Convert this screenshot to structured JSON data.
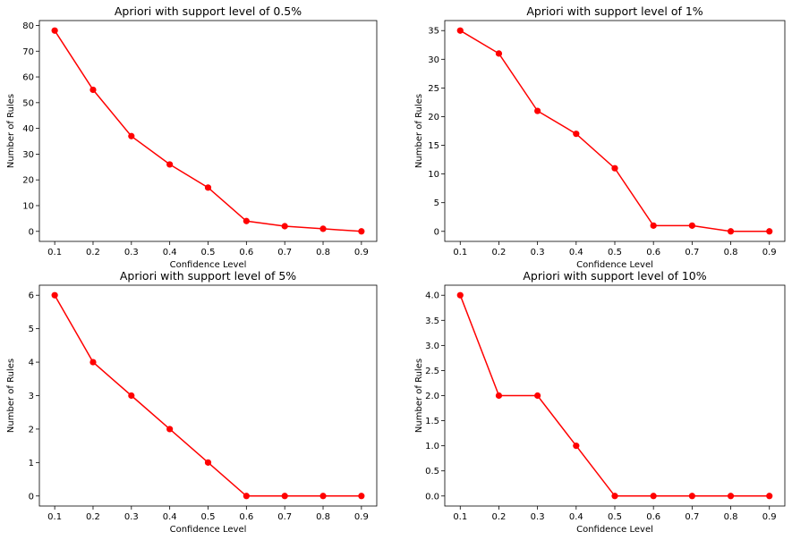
{
  "chart_data": [
    {
      "type": "line",
      "title": "Apriori with support level of 0.5%",
      "xlabel": "Confidence Level",
      "ylabel": "Number of Rules",
      "x": [
        0.1,
        0.2,
        0.3,
        0.4,
        0.5,
        0.6,
        0.7,
        0.8,
        0.9
      ],
      "values": [
        78,
        55,
        37,
        26,
        17,
        4,
        2,
        1,
        0
      ],
      "x_ticks": [
        "0.1",
        "0.2",
        "0.3",
        "0.4",
        "0.5",
        "0.6",
        "0.7",
        "0.8",
        "0.9"
      ],
      "y_ticks": [
        0,
        10,
        20,
        30,
        40,
        50,
        60,
        70,
        80
      ],
      "y_tick_labels": [
        "0",
        "10",
        "20",
        "30",
        "40",
        "50",
        "60",
        "70",
        "80"
      ],
      "xlim": [
        0.06,
        0.94
      ],
      "ylim": [
        -3.9,
        81.9
      ],
      "color": "#ff0000",
      "marker": "circle",
      "grid": false
    },
    {
      "type": "line",
      "title": "Apriori with support level of 1%",
      "xlabel": "Confidence Level",
      "ylabel": "Number of Rules",
      "x": [
        0.1,
        0.2,
        0.3,
        0.4,
        0.5,
        0.6,
        0.7,
        0.8,
        0.9
      ],
      "values": [
        35,
        31,
        21,
        17,
        11,
        1,
        1,
        0,
        0
      ],
      "x_ticks": [
        "0.1",
        "0.2",
        "0.3",
        "0.4",
        "0.5",
        "0.6",
        "0.7",
        "0.8",
        "0.9"
      ],
      "y_ticks": [
        0,
        5,
        10,
        15,
        20,
        25,
        30,
        35
      ],
      "y_tick_labels": [
        "0",
        "5",
        "10",
        "15",
        "20",
        "25",
        "30",
        "35"
      ],
      "xlim": [
        0.06,
        0.94
      ],
      "ylim": [
        -1.75,
        36.75
      ],
      "color": "#ff0000",
      "marker": "circle",
      "grid": false
    },
    {
      "type": "line",
      "title": "Apriori with support level of 5%",
      "xlabel": "Confidence Level",
      "ylabel": "Number of Rules",
      "x": [
        0.1,
        0.2,
        0.3,
        0.4,
        0.5,
        0.6,
        0.7,
        0.8,
        0.9
      ],
      "values": [
        6,
        4,
        3,
        2,
        1,
        0,
        0,
        0,
        0
      ],
      "x_ticks": [
        "0.1",
        "0.2",
        "0.3",
        "0.4",
        "0.5",
        "0.6",
        "0.7",
        "0.8",
        "0.9"
      ],
      "y_ticks": [
        0,
        1,
        2,
        3,
        4,
        5,
        6
      ],
      "y_tick_labels": [
        "0",
        "1",
        "2",
        "3",
        "4",
        "5",
        "6"
      ],
      "xlim": [
        0.06,
        0.94
      ],
      "ylim": [
        -0.3,
        6.3
      ],
      "color": "#ff0000",
      "marker": "circle",
      "grid": false
    },
    {
      "type": "line",
      "title": "Apriori with support level of 10%",
      "xlabel": "Confidence Level",
      "ylabel": "Number of Rules",
      "x": [
        0.1,
        0.2,
        0.3,
        0.4,
        0.5,
        0.6,
        0.7,
        0.8,
        0.9
      ],
      "values": [
        4,
        2,
        2,
        1,
        0,
        0,
        0,
        0,
        0
      ],
      "x_ticks": [
        "0.1",
        "0.2",
        "0.3",
        "0.4",
        "0.5",
        "0.6",
        "0.7",
        "0.8",
        "0.9"
      ],
      "y_ticks": [
        0,
        0.5,
        1,
        1.5,
        2,
        2.5,
        3,
        3.5,
        4
      ],
      "y_tick_labels": [
        "0.0",
        "0.5",
        "1.0",
        "1.5",
        "2.0",
        "2.5",
        "3.0",
        "3.5",
        "4.0"
      ],
      "xlim": [
        0.06,
        0.94
      ],
      "ylim": [
        -0.2,
        4.2
      ],
      "color": "#ff0000",
      "marker": "circle",
      "grid": false
    }
  ]
}
